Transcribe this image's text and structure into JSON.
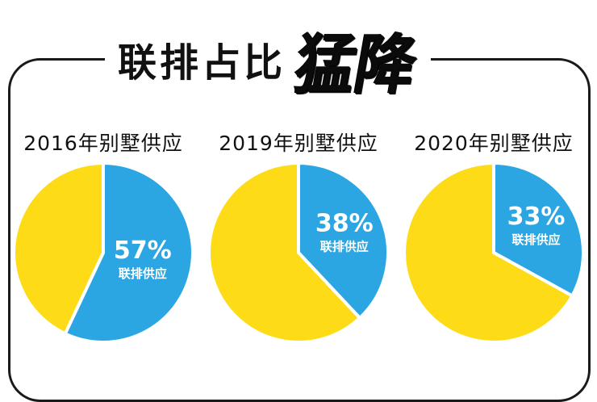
{
  "title": {
    "main": "联排占比",
    "emphasis": "猛降"
  },
  "colors": {
    "townhouse": "#2CA6E3",
    "other": "#FDDC17",
    "border": "#1A1A1A"
  },
  "chart_data": [
    {
      "type": "pie",
      "title": "2016年别墅供应",
      "slices": [
        {
          "name": "联排供应",
          "value": 57,
          "label": "57%"
        },
        {
          "value": 43
        }
      ]
    },
    {
      "type": "pie",
      "title": "2019年别墅供应",
      "slices": [
        {
          "name": "联排供应",
          "value": 38,
          "label": "38%"
        },
        {
          "value": 62
        }
      ]
    },
    {
      "type": "pie",
      "title": "2020年别墅供应",
      "slices": [
        {
          "name": "联排供应",
          "value": 33,
          "label": "33%"
        },
        {
          "value": 67
        }
      ]
    }
  ]
}
